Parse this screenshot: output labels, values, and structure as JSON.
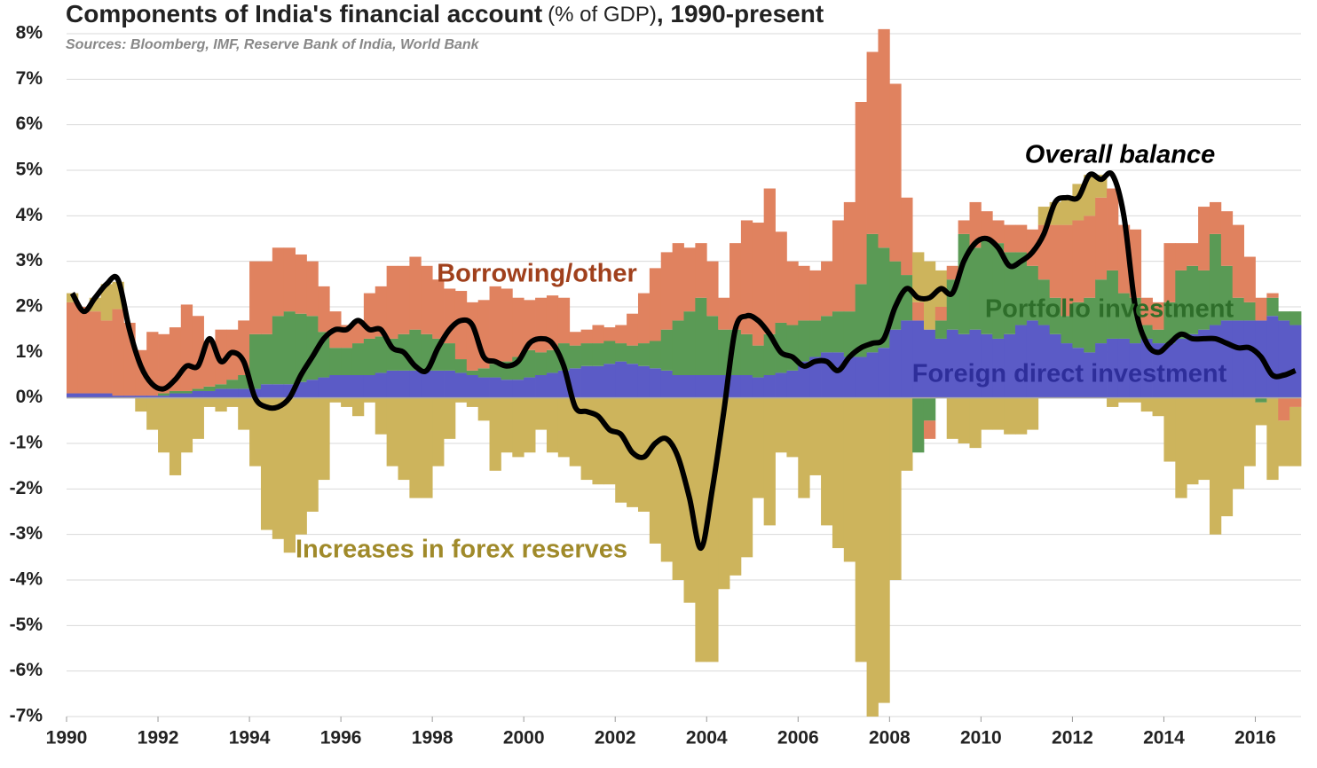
{
  "chart_data": {
    "type": "stacked-bar-line",
    "title": "Components of India's financial account",
    "title_unit": "(% of GDP)",
    "title_suffix": ", 1990-present",
    "subtitle": "Sources: Bloomberg, IMF, Reserve Bank of India, World Bank",
    "x": [
      1990,
      1990.25,
      1990.5,
      1990.75,
      1991,
      1991.25,
      1991.5,
      1991.75,
      1992,
      1992.25,
      1992.5,
      1992.75,
      1993,
      1993.25,
      1993.5,
      1993.75,
      1994,
      1994.25,
      1994.5,
      1994.75,
      1995,
      1995.25,
      1995.5,
      1995.75,
      1996,
      1996.25,
      1996.5,
      1996.75,
      1997,
      1997.25,
      1997.5,
      1997.75,
      1998,
      1998.25,
      1998.5,
      1998.75,
      1999,
      1999.25,
      1999.5,
      1999.75,
      2000,
      2000.25,
      2000.5,
      2000.75,
      2001,
      2001.25,
      2001.5,
      2001.75,
      2002,
      2002.25,
      2002.5,
      2002.75,
      2003,
      2003.25,
      2003.5,
      2003.75,
      2004,
      2004.25,
      2004.5,
      2004.75,
      2005,
      2005.25,
      2005.5,
      2005.75,
      2006,
      2006.25,
      2006.5,
      2006.75,
      2007,
      2007.25,
      2007.5,
      2007.75,
      2008,
      2008.25,
      2008.5,
      2008.75,
      2009,
      2009.25,
      2009.5,
      2009.75,
      2010,
      2010.25,
      2010.5,
      2010.75,
      2011,
      2011.25,
      2011.5,
      2011.75,
      2012,
      2012.25,
      2012.5,
      2012.75,
      2013,
      2013.25,
      2013.5,
      2013.75,
      2014,
      2014.25,
      2014.5,
      2014.75,
      2015,
      2015.25,
      2015.5,
      2015.75,
      2016,
      2016.25,
      2016.5,
      2016.75
    ],
    "xlim": [
      1990,
      2017
    ],
    "xticks": [
      1990,
      1992,
      1994,
      1996,
      1998,
      2000,
      2002,
      2004,
      2006,
      2008,
      2010,
      2012,
      2014,
      2016
    ],
    "ylim": [
      -7,
      8
    ],
    "yticks": [
      {
        "value": 8,
        "label": "8%"
      },
      {
        "value": 7,
        "label": "7%"
      },
      {
        "value": 6,
        "label": "6%"
      },
      {
        "value": 5,
        "label": "5%"
      },
      {
        "value": 4,
        "label": "4%"
      },
      {
        "value": 3,
        "label": "3%"
      },
      {
        "value": 2,
        "label": "2%"
      },
      {
        "value": 1,
        "label": "1%"
      },
      {
        "value": 0,
        "label": "0%"
      },
      {
        "value": -1,
        "label": "-1%"
      },
      {
        "value": -2,
        "label": "-2%"
      },
      {
        "value": -3,
        "label": "-3%"
      },
      {
        "value": -4,
        "label": "-4%"
      },
      {
        "value": -5,
        "label": "-5%"
      },
      {
        "value": -6,
        "label": "-6%"
      },
      {
        "value": -7,
        "label": "-7%"
      }
    ],
    "grid": true,
    "series": [
      {
        "name": "Foreign direct investment",
        "color": "#5b5bc6",
        "values": [
          0.1,
          0.1,
          0.1,
          0.1,
          0.05,
          0.05,
          0.05,
          0.05,
          0.05,
          0.1,
          0.1,
          0.15,
          0.15,
          0.2,
          0.2,
          0.2,
          0.2,
          0.3,
          0.3,
          0.3,
          0.35,
          0.4,
          0.45,
          0.5,
          0.5,
          0.5,
          0.5,
          0.55,
          0.6,
          0.6,
          0.6,
          0.6,
          0.6,
          0.6,
          0.55,
          0.5,
          0.45,
          0.45,
          0.4,
          0.4,
          0.45,
          0.5,
          0.55,
          0.6,
          0.65,
          0.7,
          0.7,
          0.75,
          0.8,
          0.75,
          0.7,
          0.65,
          0.6,
          0.5,
          0.5,
          0.5,
          0.5,
          0.5,
          0.5,
          0.5,
          0.45,
          0.5,
          0.55,
          0.6,
          0.8,
          0.9,
          1.0,
          1.0,
          0.9,
          0.9,
          1.0,
          1.1,
          1.5,
          1.7,
          1.7,
          1.5,
          1.3,
          1.5,
          1.4,
          1.5,
          1.4,
          1.3,
          1.4,
          1.6,
          1.7,
          1.6,
          1.4,
          1.2,
          1.1,
          1.0,
          1.2,
          1.3,
          1.3,
          1.2,
          1.3,
          1.2,
          1.2,
          1.3,
          1.4,
          1.5,
          1.6,
          1.7,
          1.7,
          1.7,
          1.7,
          1.8,
          1.7,
          1.6
        ]
      },
      {
        "name": "Portfolio investment",
        "color": "#5a9a55",
        "values": [
          0,
          0,
          0,
          0,
          0,
          0,
          0,
          0,
          0.05,
          0.05,
          0.05,
          0.05,
          0.1,
          0.1,
          0.2,
          0.3,
          1.2,
          1.1,
          1.5,
          1.6,
          1.5,
          1.4,
          1.0,
          0.6,
          0.6,
          0.7,
          0.8,
          0.8,
          0.7,
          0.8,
          0.9,
          0.8,
          0.7,
          0.6,
          0.3,
          0.1,
          0.2,
          0.3,
          0.4,
          0.5,
          0.6,
          0.5,
          0.5,
          0.6,
          0.5,
          0.5,
          0.5,
          0.5,
          0.4,
          0.4,
          0.5,
          0.6,
          0.9,
          1.2,
          1.4,
          1.7,
          1.3,
          1.0,
          1.0,
          0.9,
          0.7,
          0.9,
          1.1,
          1.0,
          0.9,
          0.8,
          0.8,
          0.9,
          1.0,
          1.6,
          2.6,
          2.2,
          1.5,
          1.0,
          -1.2,
          -0.5,
          0.4,
          1.1,
          2.2,
          1.8,
          2.1,
          2.1,
          1.8,
          1.6,
          1.2,
          1.0,
          0.8,
          0.6,
          1.0,
          1.2,
          1.4,
          1.5,
          1.0,
          1.0,
          0.3,
          0.3,
          0.9,
          1.5,
          1.5,
          1.3,
          2.0,
          1.2,
          0.5,
          0.4,
          -0.1,
          0.4,
          0.2,
          0.3
        ]
      },
      {
        "name": "Borrowing/other",
        "color": "#e0825f",
        "values": [
          2.0,
          1.9,
          1.8,
          1.6,
          1.9,
          1.6,
          1.0,
          1.4,
          1.3,
          1.4,
          1.9,
          1.6,
          1.0,
          1.2,
          1.1,
          1.2,
          1.6,
          1.6,
          1.5,
          1.4,
          1.3,
          1.2,
          1.0,
          0.8,
          0.5,
          0.5,
          1.0,
          1.1,
          1.6,
          1.5,
          1.6,
          1.5,
          1.3,
          1.2,
          1.5,
          1.5,
          1.5,
          1.7,
          1.6,
          1.3,
          1.1,
          1.2,
          1.2,
          1.0,
          0.3,
          0.3,
          0.4,
          0.3,
          0.4,
          0.7,
          1.1,
          1.6,
          1.7,
          1.7,
          1.4,
          1.2,
          1.2,
          0.7,
          1.9,
          2.5,
          2.7,
          3.2,
          2.0,
          1.4,
          1.2,
          1.1,
          1.2,
          2.0,
          2.4,
          4.0,
          4.0,
          4.8,
          3.9,
          1.7,
          0.4,
          -0.4,
          0.3,
          0.3,
          0.3,
          1.0,
          0.6,
          0.5,
          0.6,
          0.6,
          0.8,
          1.2,
          1.6,
          2.0,
          1.8,
          1.8,
          1.8,
          1.8,
          1.5,
          1.5,
          0.6,
          0.6,
          1.3,
          0.6,
          0.5,
          1.4,
          0.7,
          1.2,
          1.6,
          1.0,
          0.5,
          0.1,
          -0.5,
          -0.2
        ]
      },
      {
        "name": "Increases in forex reserves",
        "color": "#cdb45c",
        "values": [
          0.2,
          0,
          0.3,
          0.8,
          0.6,
          0,
          -0.3,
          -0.7,
          -1.2,
          -1.7,
          -1.2,
          -0.9,
          -0.2,
          -0.3,
          -0.2,
          -0.7,
          -1.5,
          -2.9,
          -3.1,
          -3.4,
          -3.0,
          -2.5,
          -1.8,
          -0.1,
          -0.2,
          -0.4,
          -0.1,
          -0.8,
          -1.5,
          -1.8,
          -2.2,
          -2.2,
          -1.5,
          -0.9,
          -0.1,
          -0.2,
          -0.5,
          -1.6,
          -1.2,
          -1.3,
          -1.2,
          -0.7,
          -1.2,
          -1.3,
          -1.5,
          -1.8,
          -1.9,
          -1.9,
          -2.3,
          -2.4,
          -2.5,
          -3.2,
          -3.6,
          -4.0,
          -4.5,
          -5.8,
          -5.8,
          -4.2,
          -3.9,
          -3.5,
          -2.2,
          -2.8,
          -1.2,
          -1.3,
          -2.2,
          -1.7,
          -2.8,
          -3.3,
          -3.6,
          -5.8,
          -7.0,
          -6.7,
          -4.0,
          -1.6,
          1.1,
          1.5,
          0.8,
          -0.9,
          -1.0,
          -1.1,
          -0.7,
          -0.7,
          -0.8,
          -0.8,
          -0.7,
          0.4,
          0.5,
          0.6,
          0.8,
          0.9,
          0.5,
          -0.2,
          -0.1,
          -0.1,
          -0.3,
          -0.4,
          -1.4,
          -2.2,
          -1.9,
          -1.8,
          -3.0,
          -2.6,
          -2.0,
          -1.5,
          -0.5,
          -1.8,
          -1.0,
          -1.3
        ]
      },
      {
        "name": "Overall balance",
        "color": "#000000",
        "type": "line",
        "values": [
          2.3,
          1.9,
          2.2,
          2.5,
          2.6,
          1.5,
          0.7,
          0.3,
          0.2,
          0.4,
          0.7,
          0.7,
          1.3,
          0.8,
          1.0,
          0.8,
          0,
          -0.2,
          -0.2,
          0,
          0.5,
          0.9,
          1.3,
          1.5,
          1.5,
          1.7,
          1.5,
          1.5,
          1.1,
          1.0,
          0.7,
          0.6,
          1.1,
          1.5,
          1.7,
          1.6,
          0.9,
          0.8,
          0.7,
          0.8,
          1.2,
          1.3,
          1.2,
          0.7,
          -0.2,
          -0.3,
          -0.4,
          -0.7,
          -0.8,
          -1.2,
          -1.3,
          -1.0,
          -0.9,
          -1.3,
          -2.2,
          -3.3,
          -2.0,
          -0.3,
          1.5,
          1.8,
          1.7,
          1.4,
          1.0,
          0.9,
          0.7,
          0.8,
          0.8,
          0.6,
          0.9,
          1.1,
          1.2,
          1.3,
          2.0,
          2.4,
          2.2,
          2.2,
          2.4,
          2.3,
          3.0,
          3.4,
          3.5,
          3.3,
          2.9,
          3.0,
          3.2,
          3.6,
          4.3,
          4.4,
          4.4,
          4.9,
          4.8,
          4.9,
          4.0,
          2.0,
          1.2,
          1.0,
          1.2,
          1.4,
          1.3,
          1.3,
          1.3,
          1.2,
          1.1,
          1.1,
          0.9,
          0.5,
          0.5,
          0.6
        ]
      }
    ]
  }
}
